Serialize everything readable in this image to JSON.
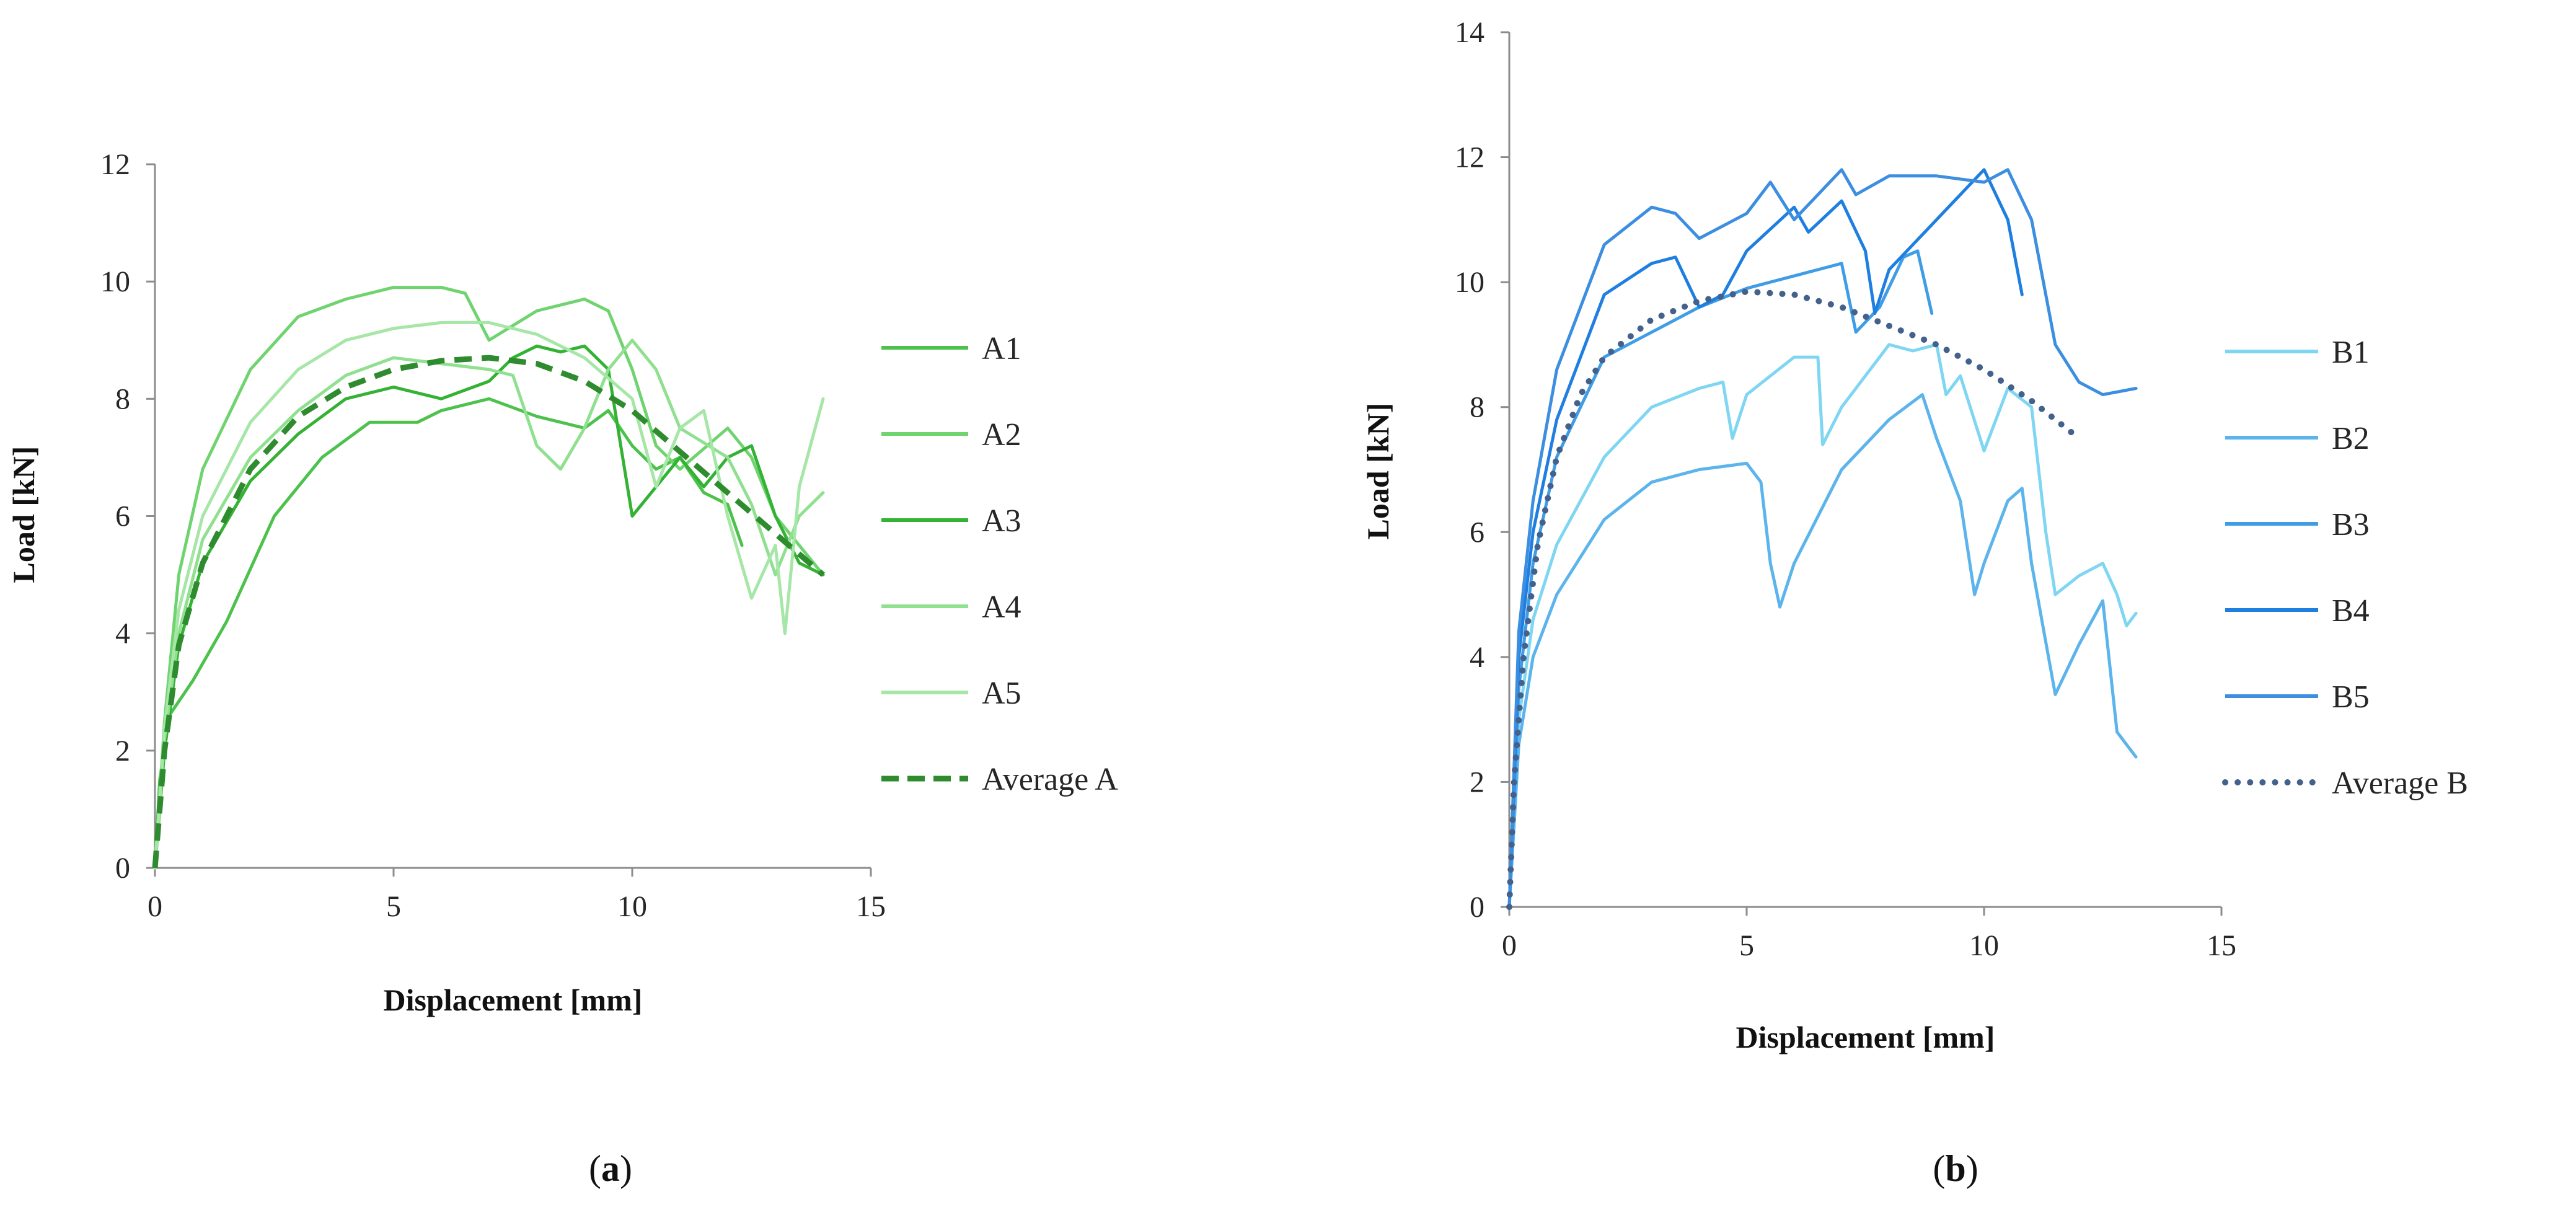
{
  "chart_data": [
    {
      "type": "line",
      "panel_label": "(a)",
      "xlabel": "Displacement [mm]",
      "ylabel": "Load [kN]",
      "xlim": [
        0,
        15
      ],
      "ylim": [
        0,
        12
      ],
      "xticks": [
        0,
        5,
        10,
        15
      ],
      "yticks": [
        0,
        2,
        4,
        6,
        8,
        10,
        12
      ],
      "legend_position": "right",
      "series": [
        {
          "name": "A1",
          "color": "#4cc24c",
          "style": "solid",
          "points": [
            [
              0,
              0
            ],
            [
              0.1,
              1.5
            ],
            [
              0.3,
              2.6
            ],
            [
              0.8,
              3.2
            ],
            [
              1.5,
              4.2
            ],
            [
              2.5,
              6.0
            ],
            [
              3.5,
              7.0
            ],
            [
              4.5,
              7.6
            ],
            [
              5.5,
              7.6
            ],
            [
              6.0,
              7.8
            ],
            [
              7.0,
              8.0
            ],
            [
              8.0,
              7.7
            ],
            [
              9.0,
              7.5
            ],
            [
              9.5,
              7.8
            ],
            [
              10.0,
              7.2
            ],
            [
              10.5,
              6.8
            ],
            [
              11.0,
              7.0
            ],
            [
              11.5,
              6.4
            ],
            [
              12.0,
              6.2
            ],
            [
              12.3,
              5.5
            ]
          ]
        },
        {
          "name": "A2",
          "color": "#6fd46f",
          "style": "solid",
          "points": [
            [
              0,
              0
            ],
            [
              0.2,
              2.5
            ],
            [
              0.5,
              5.0
            ],
            [
              1.0,
              6.8
            ],
            [
              2.0,
              8.5
            ],
            [
              3.0,
              9.4
            ],
            [
              4.0,
              9.7
            ],
            [
              5.0,
              9.9
            ],
            [
              6.0,
              9.9
            ],
            [
              6.5,
              9.8
            ],
            [
              7.0,
              9.0
            ],
            [
              8.0,
              9.5
            ],
            [
              9.0,
              9.7
            ],
            [
              9.5,
              9.5
            ],
            [
              10.0,
              8.5
            ],
            [
              10.5,
              7.2
            ],
            [
              11.0,
              6.8
            ],
            [
              12.0,
              7.5
            ],
            [
              12.5,
              7.0
            ],
            [
              13.0,
              6.0
            ],
            [
              13.5,
              5.5
            ],
            [
              14.0,
              5.0
            ]
          ]
        },
        {
          "name": "A3",
          "color": "#33b233",
          "style": "solid",
          "points": [
            [
              0,
              0
            ],
            [
              0.2,
              2.0
            ],
            [
              0.5,
              3.8
            ],
            [
              1.0,
              5.2
            ],
            [
              2.0,
              6.6
            ],
            [
              3.0,
              7.4
            ],
            [
              4.0,
              8.0
            ],
            [
              5.0,
              8.2
            ],
            [
              6.0,
              8.0
            ],
            [
              7.0,
              8.3
            ],
            [
              7.5,
              8.7
            ],
            [
              8.0,
              8.9
            ],
            [
              8.5,
              8.8
            ],
            [
              9.0,
              8.9
            ],
            [
              9.5,
              8.5
            ],
            [
              10.0,
              6.0
            ],
            [
              10.5,
              6.5
            ],
            [
              11.0,
              7.0
            ],
            [
              11.5,
              6.5
            ],
            [
              12.0,
              7.0
            ],
            [
              12.5,
              7.2
            ],
            [
              13.0,
              6.0
            ],
            [
              13.5,
              5.2
            ],
            [
              14.0,
              5.0
            ]
          ]
        },
        {
          "name": "A4",
          "color": "#8fe08f",
          "style": "solid",
          "points": [
            [
              0,
              0
            ],
            [
              0.2,
              2.2
            ],
            [
              0.5,
              4.0
            ],
            [
              1.0,
              5.6
            ],
            [
              2.0,
              7.0
            ],
            [
              3.0,
              7.8
            ],
            [
              4.0,
              8.4
            ],
            [
              5.0,
              8.7
            ],
            [
              6.0,
              8.6
            ],
            [
              7.0,
              8.5
            ],
            [
              7.5,
              8.4
            ],
            [
              8.0,
              7.2
            ],
            [
              8.5,
              6.8
            ],
            [
              9.0,
              7.5
            ],
            [
              9.5,
              8.5
            ],
            [
              10.0,
              9.0
            ],
            [
              10.5,
              8.5
            ],
            [
              11.0,
              7.5
            ],
            [
              12.0,
              7.0
            ],
            [
              12.5,
              6.2
            ],
            [
              13.0,
              5.0
            ],
            [
              13.5,
              6.0
            ],
            [
              14.0,
              6.4
            ]
          ]
        },
        {
          "name": "A5",
          "color": "#a6e6a6",
          "style": "solid",
          "points": [
            [
              0,
              0
            ],
            [
              0.2,
              2.4
            ],
            [
              0.5,
              4.4
            ],
            [
              1.0,
              6.0
            ],
            [
              2.0,
              7.6
            ],
            [
              3.0,
              8.5
            ],
            [
              4.0,
              9.0
            ],
            [
              5.0,
              9.2
            ],
            [
              6.0,
              9.3
            ],
            [
              7.0,
              9.3
            ],
            [
              8.0,
              9.1
            ],
            [
              9.0,
              8.7
            ],
            [
              10.0,
              8.0
            ],
            [
              10.5,
              6.5
            ],
            [
              11.0,
              7.5
            ],
            [
              11.5,
              7.8
            ],
            [
              12.0,
              6.0
            ],
            [
              12.5,
              4.6
            ],
            [
              13.0,
              5.5
            ],
            [
              13.2,
              4.0
            ],
            [
              13.5,
              6.5
            ],
            [
              14.0,
              8.0
            ]
          ]
        },
        {
          "name": "Average A",
          "color": "#2e8b2e",
          "style": "dashed",
          "points": [
            [
              0,
              0
            ],
            [
              0.2,
              2.0
            ],
            [
              0.5,
              3.8
            ],
            [
              1.0,
              5.2
            ],
            [
              2.0,
              6.8
            ],
            [
              3.0,
              7.7
            ],
            [
              4.0,
              8.2
            ],
            [
              5.0,
              8.5
            ],
            [
              6.0,
              8.65
            ],
            [
              7.0,
              8.7
            ],
            [
              8.0,
              8.6
            ],
            [
              9.0,
              8.3
            ],
            [
              10.0,
              7.8
            ],
            [
              11.0,
              7.1
            ],
            [
              12.0,
              6.4
            ],
            [
              13.0,
              5.7
            ],
            [
              14.0,
              5.0
            ]
          ]
        }
      ]
    },
    {
      "type": "line",
      "panel_label": "(b)",
      "xlabel": "Displacement [mm]",
      "ylabel": "Load [kN]",
      "xlim": [
        0,
        15
      ],
      "ylim": [
        0,
        14
      ],
      "xticks": [
        0,
        5,
        10,
        15
      ],
      "yticks": [
        0,
        2,
        4,
        6,
        8,
        10,
        12,
        14
      ],
      "legend_position": "right",
      "series": [
        {
          "name": "B1",
          "color": "#7fd6f2",
          "style": "solid",
          "points": [
            [
              0,
              0
            ],
            [
              0.2,
              3.0
            ],
            [
              0.5,
              4.6
            ],
            [
              1.0,
              5.8
            ],
            [
              2.0,
              7.2
            ],
            [
              3.0,
              8.0
            ],
            [
              4.0,
              8.3
            ],
            [
              4.5,
              8.4
            ],
            [
              4.7,
              7.5
            ],
            [
              5.0,
              8.2
            ],
            [
              6.0,
              8.8
            ],
            [
              6.5,
              8.8
            ],
            [
              6.6,
              7.4
            ],
            [
              7.0,
              8.0
            ],
            [
              8.0,
              9.0
            ],
            [
              8.5,
              8.9
            ],
            [
              9.0,
              9.0
            ],
            [
              9.2,
              8.2
            ],
            [
              9.5,
              8.5
            ],
            [
              10.0,
              7.3
            ],
            [
              10.5,
              8.3
            ],
            [
              11.0,
              8.0
            ],
            [
              11.3,
              6.0
            ],
            [
              11.5,
              5.0
            ],
            [
              12.0,
              5.3
            ],
            [
              12.5,
              5.5
            ],
            [
              12.8,
              5.0
            ],
            [
              13.0,
              4.5
            ],
            [
              13.2,
              4.7
            ]
          ]
        },
        {
          "name": "B2",
          "color": "#5cb4ec",
          "style": "solid",
          "points": [
            [
              0,
              0
            ],
            [
              0.2,
              2.6
            ],
            [
              0.5,
              4.0
            ],
            [
              1.0,
              5.0
            ],
            [
              2.0,
              6.2
            ],
            [
              3.0,
              6.8
            ],
            [
              4.0,
              7.0
            ],
            [
              5.0,
              7.1
            ],
            [
              5.3,
              6.8
            ],
            [
              5.5,
              5.5
            ],
            [
              5.7,
              4.8
            ],
            [
              6.0,
              5.5
            ],
            [
              7.0,
              7.0
            ],
            [
              8.0,
              7.8
            ],
            [
              8.7,
              8.2
            ],
            [
              9.0,
              7.5
            ],
            [
              9.5,
              6.5
            ],
            [
              9.8,
              5.0
            ],
            [
              10.0,
              5.5
            ],
            [
              10.5,
              6.5
            ],
            [
              10.8,
              6.7
            ],
            [
              11.0,
              5.5
            ],
            [
              11.5,
              3.4
            ],
            [
              12.0,
              4.2
            ],
            [
              12.5,
              4.9
            ],
            [
              12.8,
              2.8
            ],
            [
              13.0,
              2.6
            ],
            [
              13.2,
              2.4
            ]
          ]
        },
        {
          "name": "B3",
          "color": "#3f9de6",
          "style": "solid",
          "points": [
            [
              0,
              0
            ],
            [
              0.2,
              3.5
            ],
            [
              0.5,
              5.5
            ],
            [
              1.0,
              7.2
            ],
            [
              2.0,
              8.8
            ],
            [
              3.0,
              9.2
            ],
            [
              4.0,
              9.6
            ],
            [
              5.0,
              9.9
            ],
            [
              5.5,
              10.0
            ],
            [
              6.0,
              10.1
            ],
            [
              6.5,
              10.2
            ],
            [
              7.0,
              10.3
            ],
            [
              7.3,
              9.2
            ],
            [
              7.8,
              9.6
            ],
            [
              8.3,
              10.4
            ],
            [
              8.6,
              10.5
            ],
            [
              8.9,
              9.5
            ]
          ]
        },
        {
          "name": "B4",
          "color": "#1f7fe0",
          "style": "solid",
          "points": [
            [
              0,
              0
            ],
            [
              0.2,
              4.0
            ],
            [
              0.5,
              6.0
            ],
            [
              1.0,
              7.8
            ],
            [
              2.0,
              9.8
            ],
            [
              3.0,
              10.3
            ],
            [
              3.5,
              10.4
            ],
            [
              4.0,
              9.6
            ],
            [
              4.5,
              9.8
            ],
            [
              5.0,
              10.5
            ],
            [
              6.0,
              11.2
            ],
            [
              6.3,
              10.8
            ],
            [
              7.0,
              11.3
            ],
            [
              7.5,
              10.5
            ],
            [
              7.7,
              9.5
            ],
            [
              8.0,
              10.2
            ],
            [
              9.0,
              11.0
            ],
            [
              9.5,
              11.4
            ],
            [
              10.0,
              11.8
            ],
            [
              10.5,
              11.0
            ],
            [
              10.8,
              9.8
            ]
          ]
        },
        {
          "name": "B5",
          "color": "#3c8ee0",
          "style": "solid",
          "points": [
            [
              0,
              0
            ],
            [
              0.2,
              4.4
            ],
            [
              0.5,
              6.5
            ],
            [
              1.0,
              8.6
            ],
            [
              2.0,
              10.6
            ],
            [
              3.0,
              11.2
            ],
            [
              3.5,
              11.1
            ],
            [
              4.0,
              10.7
            ],
            [
              5.0,
              11.1
            ],
            [
              5.5,
              11.6
            ],
            [
              6.0,
              11.0
            ],
            [
              7.0,
              11.8
            ],
            [
              7.3,
              11.4
            ],
            [
              8.0,
              11.7
            ],
            [
              9.0,
              11.7
            ],
            [
              10.0,
              11.6
            ],
            [
              10.5,
              11.8
            ],
            [
              11.0,
              11.0
            ],
            [
              11.5,
              9.0
            ],
            [
              12.0,
              8.4
            ],
            [
              12.5,
              8.2
            ],
            [
              13.2,
              8.3
            ]
          ]
        },
        {
          "name": "Average B",
          "color": "#44618c",
          "style": "dotted",
          "points": [
            [
              0,
              0
            ],
            [
              0.1,
              2.0
            ],
            [
              0.3,
              4.0
            ],
            [
              0.6,
              5.8
            ],
            [
              1.0,
              7.2
            ],
            [
              1.5,
              8.2
            ],
            [
              2.0,
              8.8
            ],
            [
              3.0,
              9.4
            ],
            [
              4.0,
              9.7
            ],
            [
              5.0,
              9.85
            ],
            [
              6.0,
              9.8
            ],
            [
              7.0,
              9.6
            ],
            [
              8.0,
              9.3
            ],
            [
              9.0,
              9.0
            ],
            [
              10.0,
              8.6
            ],
            [
              11.0,
              8.1
            ],
            [
              12.0,
              7.5
            ]
          ]
        }
      ]
    }
  ]
}
